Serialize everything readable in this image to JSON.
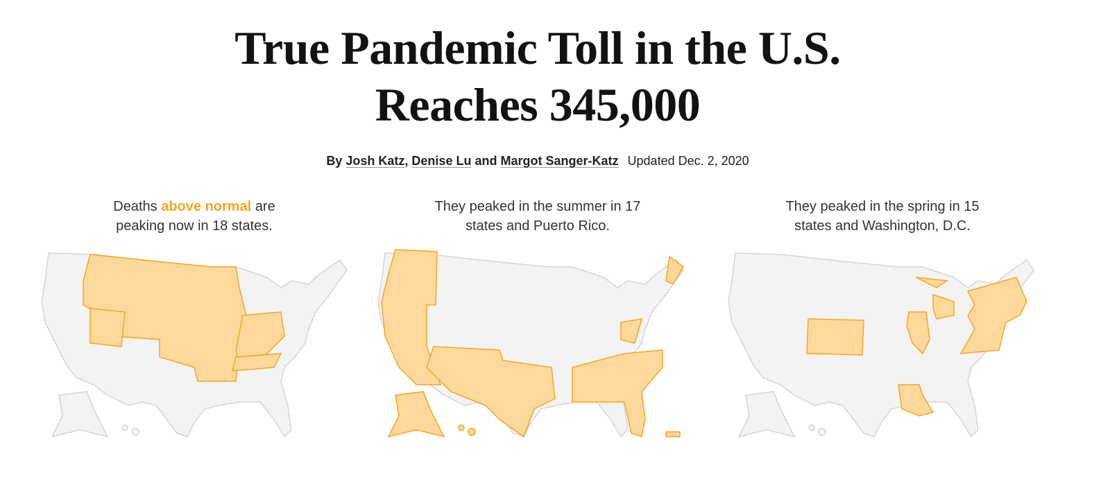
{
  "header": {
    "title": "True Pandemic Toll in the U.S. Reaches 345,000"
  },
  "byline": {
    "prefix": "By",
    "authors": [
      "Josh Katz",
      "Denise Lu",
      "Margot Sanger-Katz"
    ],
    "comma": ",",
    "conjunction": "and",
    "updated": "Updated Dec. 2, 2020"
  },
  "panels": [
    {
      "caption": {
        "before": "Deaths",
        "highlight": "above normal",
        "after": "are peaking now in 18 states."
      }
    },
    {
      "caption": {
        "text": "They peaked in the summer in 17 states and Puerto Rico."
      }
    },
    {
      "caption": {
        "text": "They peaked in the spring in 15 states and Washington, D.C."
      }
    }
  ]
}
